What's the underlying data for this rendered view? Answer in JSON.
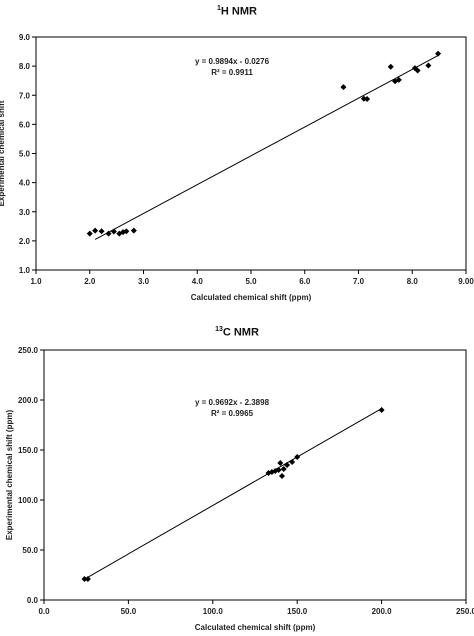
{
  "chart_data": [
    {
      "type": "scatter",
      "title_sup": "1",
      "title_rest": "H NMR",
      "xlabel": "Calculated chemical shift (ppm)",
      "ylabel": "Experimental chemical shift",
      "xlim": [
        1.0,
        9.0
      ],
      "ylim": [
        1.0,
        9.0
      ],
      "xticks": [
        "1.0",
        "2.0",
        "3.0",
        "4.0",
        "5.0",
        "6.0",
        "7.0",
        "8.0",
        "9.00"
      ],
      "yticks": [
        "1.0",
        "2.0",
        "3.0",
        "4.0",
        "5.0",
        "6.0",
        "7.0",
        "8.0",
        "9.0"
      ],
      "equation": "y = 0.9894x - 0.0276",
      "r2": "R² = 0.9911",
      "slope": 0.9894,
      "intercept": -0.0276,
      "trend_x": [
        2.1,
        8.5
      ],
      "points": [
        {
          "x": 2.0,
          "y": 2.25
        },
        {
          "x": 2.1,
          "y": 2.35
        },
        {
          "x": 2.22,
          "y": 2.33
        },
        {
          "x": 2.35,
          "y": 2.25
        },
        {
          "x": 2.45,
          "y": 2.32
        },
        {
          "x": 2.55,
          "y": 2.25
        },
        {
          "x": 2.62,
          "y": 2.3
        },
        {
          "x": 2.68,
          "y": 2.33
        },
        {
          "x": 2.82,
          "y": 2.35
        },
        {
          "x": 6.72,
          "y": 7.28
        },
        {
          "x": 7.1,
          "y": 6.88
        },
        {
          "x": 7.16,
          "y": 6.87
        },
        {
          "x": 7.6,
          "y": 7.98
        },
        {
          "x": 7.68,
          "y": 7.48
        },
        {
          "x": 7.75,
          "y": 7.53
        },
        {
          "x": 8.05,
          "y": 7.93
        },
        {
          "x": 8.1,
          "y": 7.85
        },
        {
          "x": 8.3,
          "y": 8.02
        },
        {
          "x": 8.48,
          "y": 8.43
        }
      ]
    },
    {
      "type": "scatter",
      "title_sup": "13",
      "title_rest": "C NMR",
      "xlabel": "Calculated chemical shift (ppm)",
      "ylabel": "Experimental chemical shift (ppm)",
      "xlim": [
        0.0,
        250.0
      ],
      "ylim": [
        0.0,
        250.0
      ],
      "xticks": [
        "0.0",
        "50.0",
        "100.0",
        "150.0",
        "200.0",
        "250.0"
      ],
      "yticks": [
        "0.0",
        "50.0",
        "100.0",
        "150.0",
        "200.0",
        "250.0"
      ],
      "equation": "y = 0.9692x - 2.3898",
      "r2": "R² = 0.9965",
      "slope": 0.9692,
      "intercept": -2.3898,
      "trend_x": [
        24,
        200
      ],
      "points": [
        {
          "x": 24,
          "y": 21
        },
        {
          "x": 26,
          "y": 21
        },
        {
          "x": 133,
          "y": 127
        },
        {
          "x": 135,
          "y": 128
        },
        {
          "x": 137,
          "y": 129
        },
        {
          "x": 139,
          "y": 130
        },
        {
          "x": 140,
          "y": 137
        },
        {
          "x": 141,
          "y": 124
        },
        {
          "x": 142,
          "y": 131
        },
        {
          "x": 144,
          "y": 135
        },
        {
          "x": 147,
          "y": 138
        },
        {
          "x": 150,
          "y": 143
        },
        {
          "x": 200,
          "y": 190
        }
      ]
    }
  ]
}
